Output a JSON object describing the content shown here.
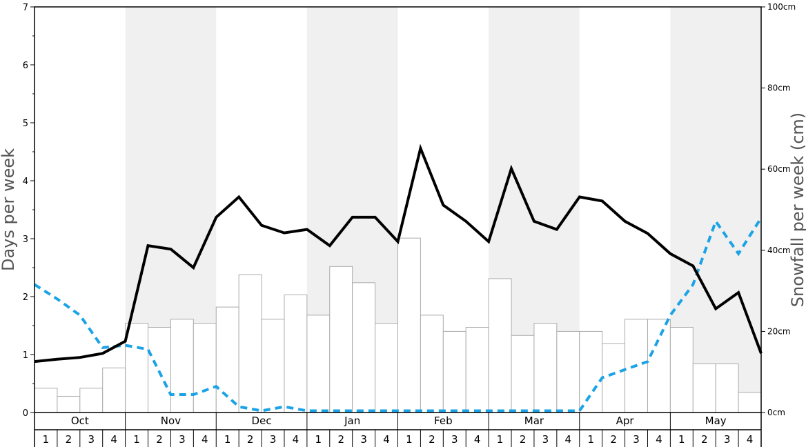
{
  "chart_data": {
    "type": "bar",
    "left_axis": {
      "title": "Days per week",
      "ylim": [
        0,
        7
      ],
      "ticks": [
        "0",
        "1",
        "2",
        "3",
        "4",
        "5",
        "6",
        "7"
      ]
    },
    "right_axis": {
      "title": "Snowfall per week (cm)",
      "ylim": [
        0,
        100
      ],
      "ticks": [
        "0cm",
        "20cm",
        "40cm",
        "60cm",
        "80cm",
        "100cm"
      ]
    },
    "months": [
      "Oct",
      "Nov",
      "Dec",
      "Jan",
      "Feb",
      "Mar",
      "Apr",
      "May"
    ],
    "weeks": [
      "1",
      "2",
      "3",
      "4"
    ],
    "shaded_months": [
      "Nov",
      "Jan",
      "Mar",
      "May"
    ],
    "colors": {
      "bars_fill": "#ffffff",
      "bars_stroke": "#aaaaaa",
      "solid_line": "#000000",
      "dashed_line": "#1ba3e6",
      "shade": "#f0f0f0"
    },
    "series": [
      {
        "kind": "bars",
        "axis": "right",
        "values": [
          6,
          4,
          6,
          11,
          22,
          21,
          23,
          22,
          26,
          34,
          23,
          29,
          24,
          36,
          32,
          22,
          43,
          24,
          20,
          21,
          33,
          19,
          22,
          20,
          20,
          17,
          23,
          23,
          21,
          12,
          12,
          5
        ]
      },
      {
        "kind": "line",
        "style": "solid",
        "axis": "left",
        "values": [
          0.88,
          0.92,
          0.95,
          1.02,
          1.23,
          2.88,
          2.82,
          2.5,
          3.37,
          3.72,
          3.23,
          3.1,
          3.16,
          2.88,
          3.37,
          3.37,
          2.95,
          4.56,
          3.58,
          3.3,
          2.95,
          4.21,
          3.3,
          3.16,
          3.72,
          3.65,
          3.3,
          3.09,
          2.74,
          2.53,
          1.79,
          2.07,
          1.02
        ]
      },
      {
        "kind": "line",
        "style": "dashed",
        "axis": "left",
        "values": [
          2.21,
          1.96,
          1.68,
          1.12,
          1.16,
          1.09,
          0.31,
          0.31,
          0.45,
          0.1,
          0.03,
          0.1,
          0.03,
          0.03,
          0.03,
          0.03,
          0.03,
          0.03,
          0.03,
          0.03,
          0.03,
          0.03,
          0.03,
          0.03,
          0.03,
          0.6,
          0.74,
          0.88,
          1.68,
          2.21,
          3.3,
          2.74,
          3.36
        ]
      }
    ]
  }
}
